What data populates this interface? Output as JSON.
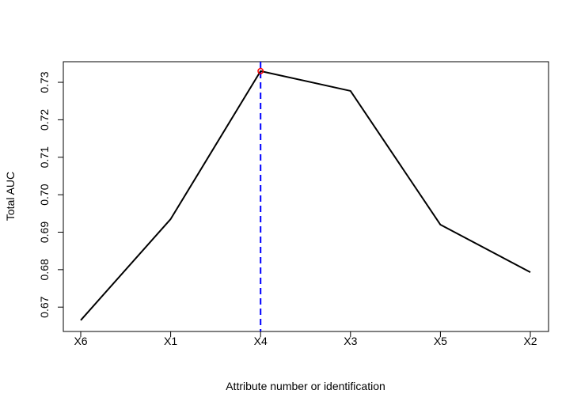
{
  "chart_data": {
    "type": "line",
    "title": "",
    "xlabel": "Attribute number or identification",
    "ylabel": "Total AUC",
    "categories": [
      "X6",
      "X1",
      "X4",
      "X3",
      "X5",
      "X2"
    ],
    "series": [
      {
        "name": "Total AUC",
        "values": [
          0.6665,
          0.6935,
          0.733,
          0.7277,
          0.692,
          0.6793
        ]
      }
    ],
    "ylim": [
      0.6635,
      0.7355
    ],
    "yticks": [
      0.67,
      0.68,
      0.69,
      0.7,
      0.71,
      0.72,
      0.73
    ],
    "ytick_labels": [
      "0.67",
      "0.68",
      "0.69",
      "0.70",
      "0.71",
      "0.72",
      "0.73"
    ],
    "highlight": {
      "category": "X4",
      "value": 0.733
    },
    "vline_category": "X4",
    "colors": {
      "line": "#000000",
      "vline": "#0000ff",
      "marker": "#ff0000",
      "axis": "#000000"
    }
  }
}
